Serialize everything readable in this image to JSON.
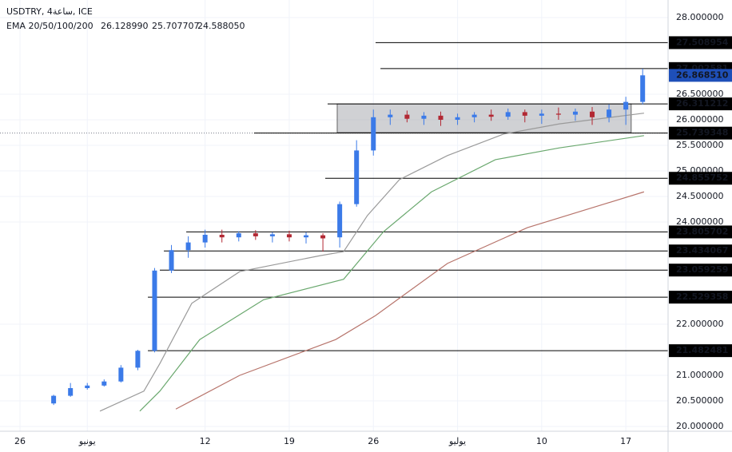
{
  "chart_data": {
    "type": "candlestick",
    "title": "USDTRY, 4ساعة, ICE",
    "indicator": {
      "name": "EMA 20/50/100/200",
      "values": [
        {
          "value": 26.12899,
          "label": "26.128990"
        },
        25.707707,
        {
          "value": 24.58805,
          "label": "24.588050"
        }
      ],
      "colors": [
        "#555555",
        "#2e7d32",
        "#b22833"
      ]
    },
    "x": [
      2,
      3,
      4,
      5,
      6,
      7,
      8,
      9,
      10,
      11,
      12,
      13,
      14,
      15,
      16,
      17,
      18,
      19,
      20,
      21,
      22,
      23,
      24,
      25,
      26,
      27,
      28,
      29,
      30,
      31,
      32,
      33,
      34,
      35,
      36,
      37
    ],
    "open": [
      20.45,
      20.6,
      20.75,
      20.8,
      20.88,
      21.15,
      21.48,
      23.05,
      23.45,
      23.6,
      23.75,
      23.7,
      23.78,
      23.72,
      23.76,
      23.7,
      23.74,
      23.7,
      24.35,
      25.4,
      26.05,
      26.1,
      26.02,
      26.08,
      26.0,
      26.05,
      26.1,
      26.06,
      26.15,
      26.08,
      26.12,
      26.1,
      26.16,
      26.05,
      26.2,
      26.35
    ],
    "high": [
      20.62,
      20.85,
      20.85,
      20.92,
      21.2,
      21.5,
      23.1,
      23.55,
      23.72,
      23.85,
      23.85,
      23.82,
      23.84,
      23.8,
      23.83,
      23.8,
      23.78,
      24.4,
      25.6,
      26.2,
      26.2,
      26.18,
      26.15,
      26.16,
      26.12,
      26.15,
      26.2,
      26.22,
      26.2,
      26.2,
      26.24,
      26.22,
      26.25,
      26.3,
      26.45,
      27.0
    ],
    "low": [
      20.42,
      20.58,
      20.72,
      20.78,
      20.86,
      21.1,
      21.45,
      23.0,
      23.3,
      23.5,
      23.6,
      23.62,
      23.65,
      23.6,
      23.62,
      23.58,
      23.42,
      23.5,
      24.3,
      25.3,
      25.9,
      25.95,
      25.9,
      25.88,
      25.9,
      25.95,
      25.98,
      26.0,
      25.95,
      25.92,
      26.0,
      25.98,
      25.9,
      25.95,
      25.9,
      26.3
    ],
    "close": [
      20.6,
      20.75,
      20.8,
      20.88,
      21.15,
      21.48,
      23.05,
      23.45,
      23.6,
      23.75,
      23.7,
      23.78,
      23.72,
      23.76,
      23.7,
      23.74,
      23.68,
      24.35,
      25.4,
      26.05,
      26.1,
      26.02,
      26.08,
      26.0,
      26.05,
      26.1,
      26.06,
      26.15,
      26.08,
      26.12,
      26.1,
      26.16,
      26.05,
      26.2,
      26.35,
      26.87
    ],
    "up_color": "#3b7ae8",
    "down_color": "#b22833",
    "series": [
      {
        "name": "EMA 20",
        "color": "#9a9a9a",
        "x": [
          4.75,
          7.36,
          8.31,
          10.21,
          13.06,
          17.81,
          19.23,
          20.65,
          22.55,
          25.4,
          28.73,
          32.05,
          37.08
        ],
        "values": [
          20.3,
          20.69,
          21.23,
          22.41,
          23.03,
          23.34,
          23.42,
          24.13,
          24.83,
          25.3,
          25.72,
          25.92,
          26.13
        ]
      },
      {
        "name": "EMA 50",
        "color": "#6aa86e",
        "x": [
          7.12,
          8.31,
          10.68,
          14.48,
          19.23,
          21.6,
          24.45,
          28.25,
          32.05,
          37.08
        ],
        "values": [
          20.3,
          20.69,
          21.7,
          22.48,
          22.88,
          23.81,
          24.59,
          25.22,
          25.45,
          25.69
        ]
      },
      {
        "name": "EMA 100",
        "color": "#b7746b",
        "x": [
          9.26,
          13.06,
          18.76,
          21.13,
          25.4,
          30.15,
          37.08
        ],
        "values": [
          20.34,
          21.0,
          21.7,
          22.17,
          23.19,
          23.89,
          24.59
        ]
      }
    ],
    "levels": [
      27.508954,
      27.002581,
      26.311212,
      25.739348,
      24.855752,
      23.805702,
      23.434067,
      23.059259,
      22.529358,
      21.482481
    ],
    "level_from": [
      21.13,
      21.42,
      18.28,
      13.91,
      18.14,
      9.88,
      8.55,
      8.31,
      7.6,
      7.6
    ],
    "zone": {
      "x": [
        18.85,
        36.32
      ],
      "y": [
        25.75,
        26.31
      ]
    },
    "last_price": {
      "value": 26.86851,
      "label": "26.868510"
    },
    "xlim": [
      -1.187,
      38.51
    ],
    "ylim": [
      19.90625,
      28.34375
    ],
    "yticks": [
      {
        "value": 28,
        "label": "28.000000"
      },
      {
        "value": 26.5,
        "label": "26.500000"
      },
      {
        "value": 26,
        "label": "26.000000"
      },
      {
        "value": 25.5,
        "label": "25.500000"
      },
      {
        "value": 25,
        "label": "25.000000"
      },
      {
        "value": 24.5,
        "label": "24.500000"
      },
      {
        "value": 24,
        "label": "24.000000"
      },
      {
        "value": 22,
        "label": "22.000000"
      },
      {
        "value": 21,
        "label": "21.000000"
      },
      {
        "value": 20.5,
        "label": "20.500000"
      },
      {
        "value": 20,
        "label": "20.000000"
      }
    ],
    "xticks": [
      {
        "value": 0,
        "label": "26"
      },
      {
        "value": 4,
        "label": "يونيو"
      },
      {
        "value": 11,
        "label": "12"
      },
      {
        "value": 16,
        "label": "19"
      },
      {
        "value": 21,
        "label": "26"
      },
      {
        "value": 26,
        "label": "يوليو"
      },
      {
        "value": 31,
        "label": "10"
      },
      {
        "value": 36,
        "label": "17"
      }
    ],
    "grid": true
  }
}
